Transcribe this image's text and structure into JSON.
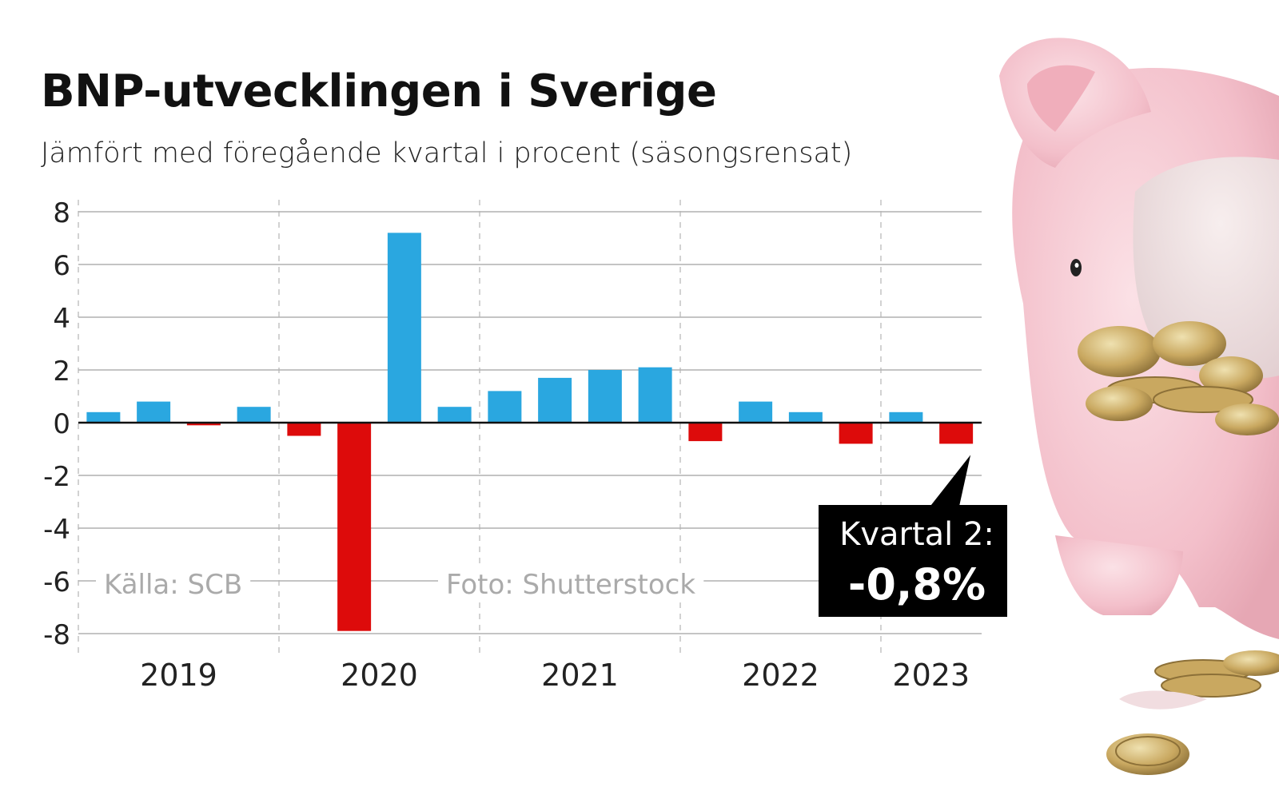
{
  "title": "BNP-utvecklingen i Sverige",
  "subtitle": "Jämfört med föregående kvartal i procent (säsongsrensat)",
  "source_note": "Källa: SCB",
  "photo_note": "Foto: Shutterstock",
  "callout": {
    "label": "Kvartal 2:",
    "value": "-0,8%"
  },
  "colors": {
    "positive": "#2aa7e0",
    "negative": "#dd0b0b",
    "grid": "#888888",
    "callout_bg": "#000000",
    "callout_text": "#ffffff",
    "notes": "#aaaaaa",
    "pig_pink": "#f4c6cf"
  },
  "chart_data": {
    "type": "bar",
    "title": "BNP-utvecklingen i Sverige",
    "subtitle": "Jämfört med föregående kvartal i procent (säsongsrensat)",
    "ylim": [
      -8,
      8
    ],
    "yticks": [
      "8",
      "6",
      "4",
      "2",
      "0",
      "-2",
      "-4",
      "-6",
      "-8"
    ],
    "ytick_values": [
      8,
      6,
      4,
      2,
      0,
      -2,
      -4,
      -6,
      -8
    ],
    "years": [
      "2019",
      "2020",
      "2021",
      "2022",
      "2023"
    ],
    "quarters_per_year": [
      4,
      4,
      4,
      4,
      2
    ],
    "values": [
      0.4,
      0.8,
      -0.1,
      0.6,
      -0.5,
      -7.9,
      7.2,
      0.6,
      1.2,
      1.7,
      2.0,
      2.1,
      -0.7,
      0.8,
      0.4,
      -0.8,
      0.4,
      -0.8
    ],
    "grid": true,
    "legend": "none"
  }
}
